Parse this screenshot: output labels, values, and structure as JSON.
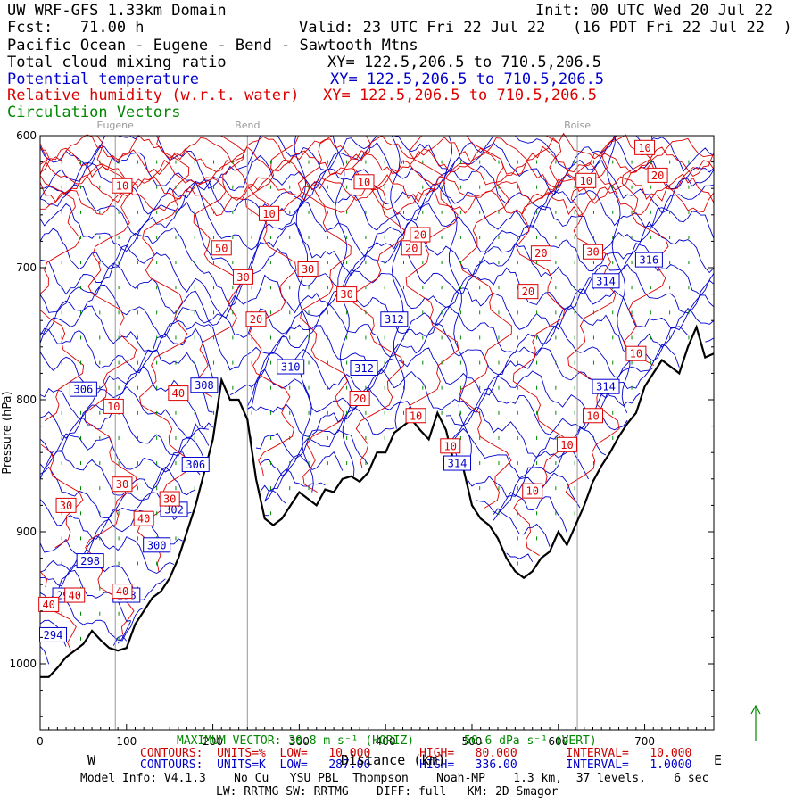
{
  "header": {
    "domain": "UW WRF-GFS 1.33km Domain",
    "init": "Init: 00 UTC Wed 20 Jul 22",
    "fcst": "Fcst:   71.00 h",
    "valid": "Valid: 23 UTC Fri 22 Jul 22   (16 PDT Fri 22 Jul 22  )",
    "route": "Pacific Ocean - Eugene - Bend - Sawtooth Mtns",
    "var1": "Total cloud mixing ratio",
    "var1_xy": "XY= 122.5,206.5 to 710.5,206.5",
    "var2": "Potential temperature",
    "var2_xy": "XY= 122.5,206.5 to 710.5,206.5",
    "var3": "Relative humidity (w.r.t. water)",
    "var3_xy": "XY= 122.5,206.5 to 710.5,206.5",
    "var4": "Circulation Vectors"
  },
  "colors": {
    "theta": "#0000cc",
    "rh": "#dd0000",
    "vectors": "#008800",
    "terrain": "#000000"
  },
  "footer": {
    "max_vector": "MAXIMUM VECTOR: 30.8 m s⁻¹ (HORIZ)",
    "max_vector_vert": "50.6 dPa s⁻¹ (VERT)",
    "rh_contours": "CONTOURS:  UNITS=%  LOW=   10.000       HIGH=   80.000       INTERVAL=   10.000",
    "theta_contours": "CONTOURS:  UNITS=K  LOW=   287.00       HIGH=   336.00       INTERVAL=   1.0000",
    "model_info": "Model Info: V4.1.3    No Cu   YSU PBL  Thompson    Noah-MP    1.3 km,  37 levels,    6 sec",
    "physics": "LW: RRTMG SW: RRTMG    DIFF: full   KM: 2D Smagor",
    "xlabel": "Distance (km)",
    "west": "W",
    "east": "E"
  },
  "chart_data": {
    "type": "line",
    "title": "UW WRF-GFS 1.33km Domain",
    "xlabel": "Distance (km)",
    "ylabel": "Pressure (hPa)",
    "xlim": [
      0,
      780
    ],
    "ylim": [
      1050,
      600
    ],
    "xticks": [
      0,
      100,
      200,
      300,
      400,
      500,
      600,
      700
    ],
    "yticks": [
      600,
      700,
      800,
      900,
      1000
    ],
    "locations": [
      {
        "name": "Eugene",
        "x": 87
      },
      {
        "name": "Bend",
        "x": 240
      },
      {
        "name": "Boise",
        "x": 622
      }
    ],
    "terrain": {
      "x": [
        0,
        10,
        20,
        30,
        40,
        50,
        60,
        70,
        80,
        90,
        100,
        110,
        120,
        130,
        140,
        150,
        160,
        170,
        180,
        190,
        200,
        210,
        220,
        230,
        240,
        250,
        260,
        270,
        280,
        290,
        300,
        310,
        320,
        330,
        340,
        350,
        360,
        370,
        380,
        390,
        400,
        410,
        420,
        430,
        440,
        450,
        460,
        470,
        480,
        490,
        500,
        510,
        520,
        530,
        540,
        550,
        560,
        570,
        580,
        590,
        600,
        610,
        620,
        630,
        640,
        650,
        660,
        670,
        680,
        690,
        700,
        710,
        720,
        730,
        740,
        750,
        760,
        770,
        780
      ],
      "p": [
        1010,
        1010,
        1003,
        995,
        990,
        985,
        975,
        982,
        988,
        990,
        988,
        970,
        960,
        950,
        945,
        935,
        920,
        900,
        880,
        855,
        830,
        785,
        800,
        800,
        815,
        860,
        890,
        895,
        890,
        880,
        870,
        875,
        880,
        868,
        870,
        860,
        858,
        862,
        855,
        840,
        840,
        825,
        820,
        815,
        823,
        830,
        810,
        823,
        850,
        852,
        880,
        890,
        895,
        905,
        920,
        930,
        935,
        930,
        920,
        915,
        900,
        910,
        895,
        880,
        862,
        850,
        840,
        828,
        818,
        810,
        790,
        780,
        770,
        775,
        780,
        760,
        745,
        768,
        765
      ]
    },
    "theta_labels": [
      {
        "value": 294,
        "x": 15,
        "p": 978
      },
      {
        "value": 296,
        "x": 30,
        "p": 948
      },
      {
        "value": 298,
        "x": 58,
        "p": 922
      },
      {
        "value": 298,
        "x": 100,
        "p": 948
      },
      {
        "value": 300,
        "x": 135,
        "p": 910
      },
      {
        "value": 302,
        "x": 155,
        "p": 883
      },
      {
        "value": 306,
        "x": 50,
        "p": 792
      },
      {
        "value": 306,
        "x": 180,
        "p": 849
      },
      {
        "value": 308,
        "x": 190,
        "p": 789
      },
      {
        "value": 310,
        "x": 290,
        "p": 775
      },
      {
        "value": 312,
        "x": 410,
        "p": 739
      },
      {
        "value": 312,
        "x": 375,
        "p": 776
      },
      {
        "value": 314,
        "x": 483,
        "p": 848
      },
      {
        "value": 314,
        "x": 655,
        "p": 710
      },
      {
        "value": 314,
        "x": 655,
        "p": 790
      },
      {
        "value": 316,
        "x": 705,
        "p": 694
      }
    ],
    "rh_labels": [
      {
        "value": 10,
        "x": 95,
        "p": 638
      },
      {
        "value": 10,
        "x": 265,
        "p": 659
      },
      {
        "value": 10,
        "x": 375,
        "p": 635
      },
      {
        "value": 10,
        "x": 85,
        "p": 805
      },
      {
        "value": 10,
        "x": 435,
        "p": 812
      },
      {
        "value": 10,
        "x": 475,
        "p": 835
      },
      {
        "value": 10,
        "x": 570,
        "p": 869
      },
      {
        "value": 10,
        "x": 610,
        "p": 834
      },
      {
        "value": 10,
        "x": 632,
        "p": 634
      },
      {
        "value": 10,
        "x": 640,
        "p": 812
      },
      {
        "value": 10,
        "x": 690,
        "p": 765
      },
      {
        "value": 10,
        "x": 700,
        "p": 609
      },
      {
        "value": 20,
        "x": 250,
        "p": 739
      },
      {
        "value": 20,
        "x": 370,
        "p": 799
      },
      {
        "value": 20,
        "x": 430,
        "p": 685
      },
      {
        "value": 20,
        "x": 440,
        "p": 675
      },
      {
        "value": 20,
        "x": 565,
        "p": 718
      },
      {
        "value": 20,
        "x": 580,
        "p": 689
      },
      {
        "value": 20,
        "x": 715,
        "p": 630
      },
      {
        "value": 30,
        "x": 235,
        "p": 707
      },
      {
        "value": 30,
        "x": 310,
        "p": 701
      },
      {
        "value": 30,
        "x": 355,
        "p": 720
      },
      {
        "value": 30,
        "x": 30,
        "p": 880
      },
      {
        "value": 30,
        "x": 95,
        "p": 864
      },
      {
        "value": 30,
        "x": 150,
        "p": 875
      },
      {
        "value": 30,
        "x": 640,
        "p": 688
      },
      {
        "value": 40,
        "x": 160,
        "p": 795
      },
      {
        "value": 40,
        "x": 120,
        "p": 890
      },
      {
        "value": 40,
        "x": 10,
        "p": 955
      },
      {
        "value": 40,
        "x": 40,
        "p": 948
      },
      {
        "value": 40,
        "x": 95,
        "p": 945
      },
      {
        "value": 50,
        "x": 210,
        "p": 685
      }
    ],
    "contour_ranges": {
      "rh": {
        "units": "%",
        "low": 10,
        "high": 80,
        "interval": 10
      },
      "theta": {
        "units": "K",
        "low": 287,
        "high": 336,
        "interval": 1
      }
    },
    "grid": false,
    "legend": "none"
  }
}
